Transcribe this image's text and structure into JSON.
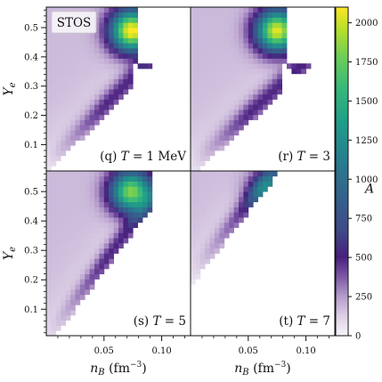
{
  "chart_data": {
    "type": "heatmap",
    "badge": "STOS",
    "colorbar": {
      "label": "A",
      "range": [
        0,
        2100
      ],
      "ticks": [
        "0",
        "250",
        "500",
        "750",
        "1000",
        "1250",
        "1500",
        "1750",
        "2000"
      ],
      "tick_values": [
        0,
        250,
        500,
        750,
        1000,
        1250,
        1500,
        1750,
        2000
      ]
    },
    "x_axis": {
      "label": "n_B (fm⁻³)",
      "label_main": "n",
      "label_sub": "B",
      "label_unit": " (fm",
      "label_sup": "−3",
      "label_close": ")",
      "range": [
        0.0,
        0.125
      ],
      "ticks": [
        "0.05",
        "0.10"
      ],
      "tick_values": [
        0.05,
        0.1
      ]
    },
    "y_axis": {
      "label": "Y_e",
      "label_main": "Y",
      "label_sub": "e",
      "range": [
        0.01,
        0.57
      ],
      "ticks": [
        "0.1",
        "0.2",
        "0.3",
        "0.4",
        "0.5"
      ],
      "tick_values": [
        0.1,
        0.2,
        0.3,
        0.4,
        0.5
      ]
    },
    "panels": [
      {
        "id": "q",
        "label": "(q) T = 1 MeV",
        "label_prefix": "(q) ",
        "label_var": "T",
        "label_rest": " = 1 MeV",
        "temperature": 1,
        "peak": {
          "nB": 0.074,
          "Ye": 0.49,
          "A": 2000
        },
        "edge_ye_at_low": 0.03,
        "edge_slope": 4.0,
        "cut_nB": 0.08
      },
      {
        "id": "r",
        "label": "(r) T = 3",
        "label_prefix": "(r) ",
        "label_var": "T",
        "label_rest": " = 3",
        "temperature": 3,
        "peak": {
          "nB": 0.075,
          "Ye": 0.49,
          "A": 1900
        },
        "edge_ye_at_low": 0.02,
        "edge_slope": 3.6,
        "cut_nB": 0.083
      },
      {
        "id": "s",
        "label": "(s) T = 5",
        "label_prefix": "(s) ",
        "label_var": "T",
        "label_rest": " = 5",
        "temperature": 5,
        "peak": {
          "nB": 0.074,
          "Ye": 0.5,
          "A": 1700
        },
        "edge_ye_at_low": 0.01,
        "edge_slope": 5.2,
        "cut_nB": 0.09
      },
      {
        "id": "t",
        "label": "(t) T = 7",
        "label_prefix": "(t) ",
        "label_var": "T",
        "label_rest": " = 7",
        "temperature": 7,
        "peak": {
          "nB": 0.07,
          "Ye": 0.5,
          "A": 950
        },
        "edge_ye_at_low": 0.22,
        "edge_slope": 5.0,
        "cut_nB": 0.088
      }
    ]
  }
}
